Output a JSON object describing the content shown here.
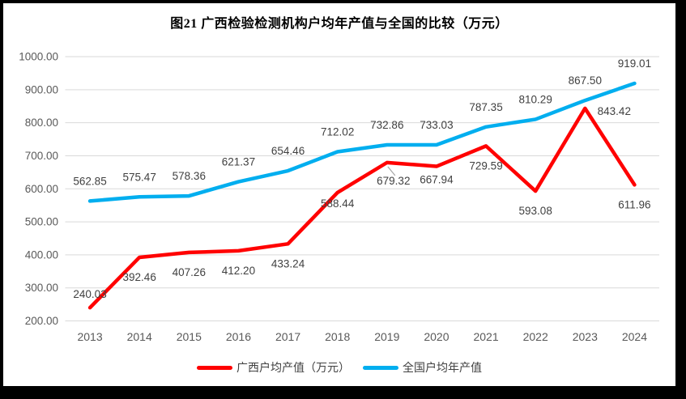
{
  "title": "图21 广西检验检测机构户均年产值与全国的比较（万元）",
  "chart_data": {
    "type": "line",
    "title": "图21 广西检验检测机构户均年产值与全国的比较（万元）",
    "categories": [
      "2013",
      "2014",
      "2015",
      "2016",
      "2017",
      "2018",
      "2019",
      "2020",
      "2021",
      "2022",
      "2023",
      "2024"
    ],
    "series": [
      {
        "name": "广西户均产值（万元）",
        "color": "#FF0000",
        "values": [
          240.03,
          392.46,
          407.26,
          412.2,
          433.24,
          588.44,
          679.32,
          667.94,
          729.59,
          593.08,
          843.42,
          611.96
        ],
        "label_position": "below"
      },
      {
        "name": "全国户均年产值",
        "color": "#00AEEF",
        "values": [
          562.85,
          575.47,
          578.36,
          621.37,
          654.46,
          712.02,
          732.86,
          733.03,
          787.35,
          810.29,
          867.5,
          919.01
        ],
        "label_position": "above"
      }
    ],
    "ylim": [
      200,
      1000
    ],
    "yticks": [
      200,
      300,
      400,
      500,
      600,
      700,
      800,
      900,
      1000
    ],
    "ytick_format": "0.00",
    "data_label_format": "0.00",
    "grid": true,
    "legend_position": "bottom",
    "colors": {
      "gridline": "#D9D9D9",
      "axis_text": "#595959",
      "data_label_text": "#404040",
      "leader_line": "#A6A6A6"
    }
  }
}
